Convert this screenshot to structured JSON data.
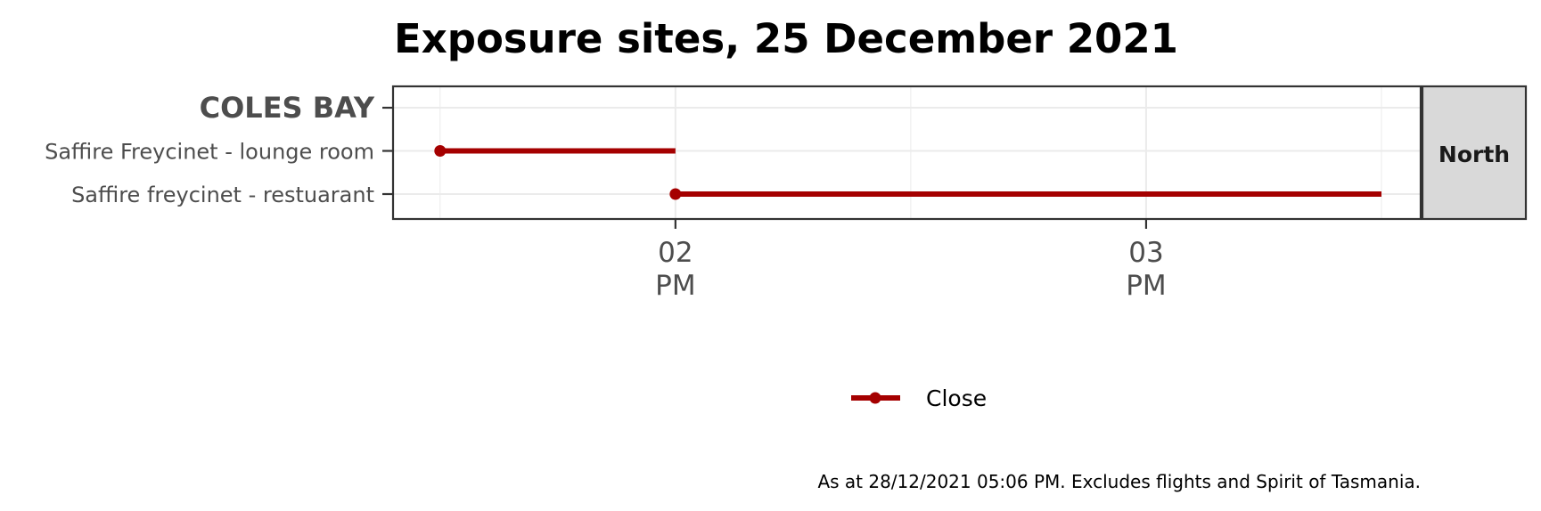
{
  "chart_data": {
    "type": "timeline",
    "title": "Exposure sites, 25 December 2021",
    "facet_strip": "North",
    "group_label": "COLES BAY",
    "categories": [
      "Saffire Freycinet - lounge room",
      "Saffire freycinet - restuarant"
    ],
    "series": [
      {
        "name": "Close",
        "color": "#a50000",
        "segments": [
          {
            "category": "Saffire Freycinet - lounge room",
            "start": "13:30",
            "end": "14:00"
          },
          {
            "category": "Saffire freycinet - restuarant",
            "start": "14:00",
            "end": "15:30"
          }
        ]
      }
    ],
    "x_axis": {
      "ticks": [
        {
          "time": "14:00",
          "label_top": "02",
          "label_bottom": "PM"
        },
        {
          "time": "15:00",
          "label_top": "03",
          "label_bottom": "PM"
        }
      ],
      "range": [
        "13:24",
        "15:35"
      ]
    },
    "grid": true,
    "legend_position": "bottom",
    "caption": "As at 28/12/2021 05:06 PM. Excludes flights and Spirit of Tasmania."
  }
}
